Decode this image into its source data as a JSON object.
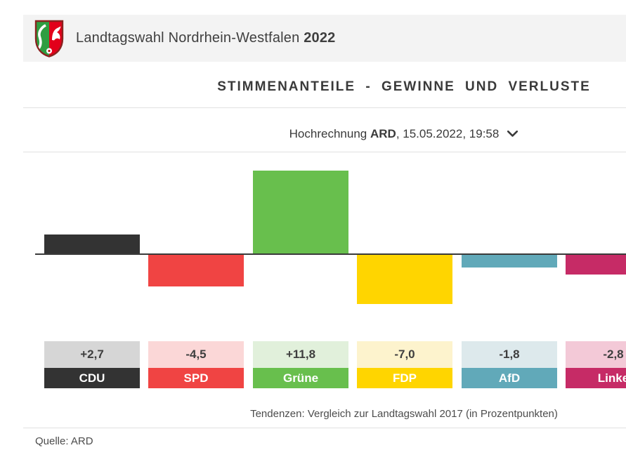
{
  "header": {
    "title_prefix": "Landtagswahl Nordrhein-Westfalen ",
    "title_year": "2022",
    "logo": "nrw-coat-of-arms"
  },
  "chart_header": {
    "title": "STIMMENANTEILE - GEWINNE UND VERLUSTE"
  },
  "subtitle": {
    "prefix": "Hochrechnung ",
    "source": "ARD",
    "suffix": ", 15.05.2022, 19:58",
    "chevron_icon": "chevron-down"
  },
  "parties": [
    {
      "name": "CDU",
      "change": 2.7,
      "change_label": "+2,7",
      "color": "#333333",
      "tint": "#d6d6d6"
    },
    {
      "name": "SPD",
      "change": -4.5,
      "change_label": "-4,5",
      "color": "#f04443",
      "tint": "#fbd7d7"
    },
    {
      "name": "Grüne",
      "change": 11.8,
      "change_label": "+11,8",
      "color": "#68bf4d",
      "tint": "#e1f0db"
    },
    {
      "name": "FDP",
      "change": -7.0,
      "change_label": "-7,0",
      "color": "#ffd500",
      "tint": "#fdf3cd"
    },
    {
      "name": "AfD",
      "change": -1.8,
      "change_label": "-1,8",
      "color": "#61a9b9",
      "tint": "#dde9ec"
    },
    {
      "name": "Linke",
      "change": -2.8,
      "change_label": "-2,8",
      "color": "#c62b66",
      "tint": "#f3c9d7"
    }
  ],
  "footer": {
    "note": "Tendenzen: Vergleich zur Landtagswahl 2017 (in Prozentpunkten)",
    "source": "Quelle: ARD"
  },
  "chart_data": {
    "type": "bar",
    "title": "STIMMENANTEILE - GEWINNE UND VERLUSTE",
    "subtitle": "Hochrechnung ARD, 15.05.2022, 19:58",
    "categories": [
      "CDU",
      "SPD",
      "Grüne",
      "FDP",
      "AfD",
      "Linke"
    ],
    "values": [
      2.7,
      -4.5,
      11.8,
      -7.0,
      -1.8,
      -2.8
    ],
    "value_labels": [
      "+2,7",
      "-4,5",
      "+11,8",
      "-7,0",
      "-1,8",
      "-2,8"
    ],
    "bar_colors": [
      "#333333",
      "#f04443",
      "#68bf4d",
      "#ffd500",
      "#61a9b9",
      "#c62b66"
    ],
    "unit": "Prozentpunkte",
    "baseline": 0,
    "ylim": [
      -8,
      12.5
    ],
    "grid": false,
    "legend": "none",
    "note": "Tendenzen: Vergleich zur Landtagswahl 2017 (in Prozentpunkten)",
    "source": "Quelle: ARD",
    "clipped_right": "Linke bar and label partially cut off at right edge"
  }
}
